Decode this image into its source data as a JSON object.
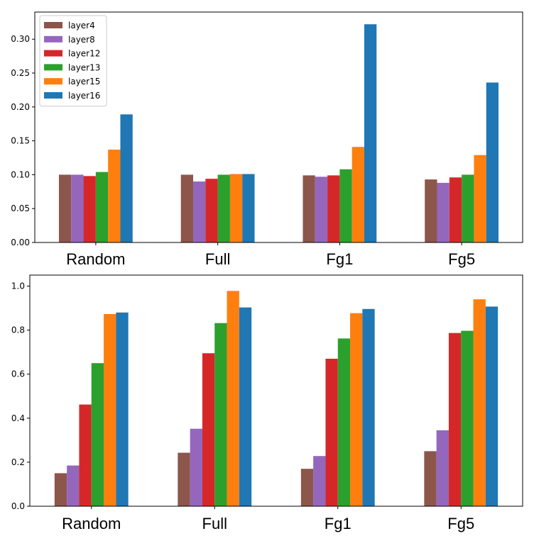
{
  "chart_data": [
    {
      "type": "bar",
      "title": "",
      "xlabel": "",
      "ylabel": "",
      "categories": [
        "Random",
        "Full",
        "Fg1",
        "Fg5"
      ],
      "ylim": [
        0,
        0.34
      ],
      "yticks": [
        "0.00",
        "0.05",
        "0.10",
        "0.15",
        "0.20",
        "0.25",
        "0.30"
      ],
      "ytick_values": [
        0,
        0.05,
        0.1,
        0.15,
        0.2,
        0.25,
        0.3
      ],
      "legend_position": "top-left",
      "series": [
        {
          "name": "layer4",
          "color": "#8c564b",
          "values": [
            0.1,
            0.1,
            0.099,
            0.093
          ]
        },
        {
          "name": "layer8",
          "color": "#9467bd",
          "values": [
            0.1,
            0.09,
            0.097,
            0.088
          ]
        },
        {
          "name": "layer12",
          "color": "#d62728",
          "values": [
            0.098,
            0.094,
            0.099,
            0.096
          ]
        },
        {
          "name": "layer13",
          "color": "#2ca02c",
          "values": [
            0.104,
            0.1,
            0.108,
            0.1
          ]
        },
        {
          "name": "layer15",
          "color": "#ff7f0e",
          "values": [
            0.137,
            0.101,
            0.141,
            0.129
          ]
        },
        {
          "name": "layer16",
          "color": "#1f77b4",
          "values": [
            0.189,
            0.101,
            0.322,
            0.236
          ]
        }
      ]
    },
    {
      "type": "bar",
      "title": "",
      "xlabel": "",
      "ylabel": "",
      "categories": [
        "Random",
        "Full",
        "Fg1",
        "Fg5"
      ],
      "ylim": [
        0,
        1.05
      ],
      "yticks": [
        "0.0",
        "0.2",
        "0.4",
        "0.6",
        "0.8",
        "1.0"
      ],
      "ytick_values": [
        0,
        0.2,
        0.4,
        0.6,
        0.8,
        1.0
      ],
      "legend_position": "none",
      "series": [
        {
          "name": "layer4",
          "color": "#8c564b",
          "values": [
            0.15,
            0.243,
            0.17,
            0.25
          ]
        },
        {
          "name": "layer8",
          "color": "#9467bd",
          "values": [
            0.185,
            0.352,
            0.228,
            0.345
          ]
        },
        {
          "name": "layer12",
          "color": "#d62728",
          "values": [
            0.462,
            0.695,
            0.67,
            0.787
          ]
        },
        {
          "name": "layer13",
          "color": "#2ca02c",
          "values": [
            0.65,
            0.832,
            0.762,
            0.797
          ]
        },
        {
          "name": "layer15",
          "color": "#ff7f0e",
          "values": [
            0.873,
            0.978,
            0.877,
            0.94
          ]
        },
        {
          "name": "layer16",
          "color": "#1f77b4",
          "values": [
            0.88,
            0.903,
            0.896,
            0.907
          ]
        }
      ]
    }
  ]
}
